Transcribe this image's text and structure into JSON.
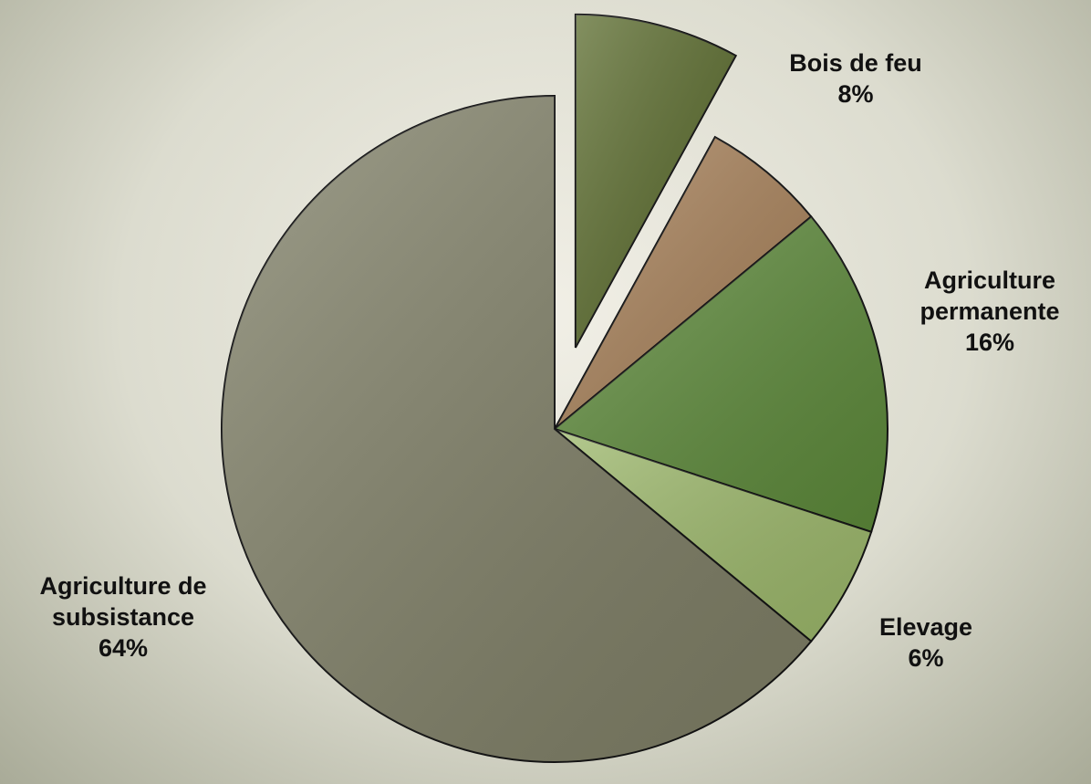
{
  "chart_data": {
    "type": "pie",
    "categories": [
      "Bois de feu",
      null,
      "Agriculture permanente",
      "Elevage",
      "Agriculture de subsistance"
    ],
    "values": [
      8,
      6,
      16,
      6,
      64
    ],
    "value_labels": [
      "8%",
      null,
      "16%",
      "6%",
      "64%"
    ],
    "colors": [
      "#5a6b2c",
      "#a9825a",
      "#5d8a3a",
      "#9cb86a",
      "#7f7f66"
    ],
    "exploded": [
      true,
      false,
      false,
      false,
      false
    ]
  }
}
